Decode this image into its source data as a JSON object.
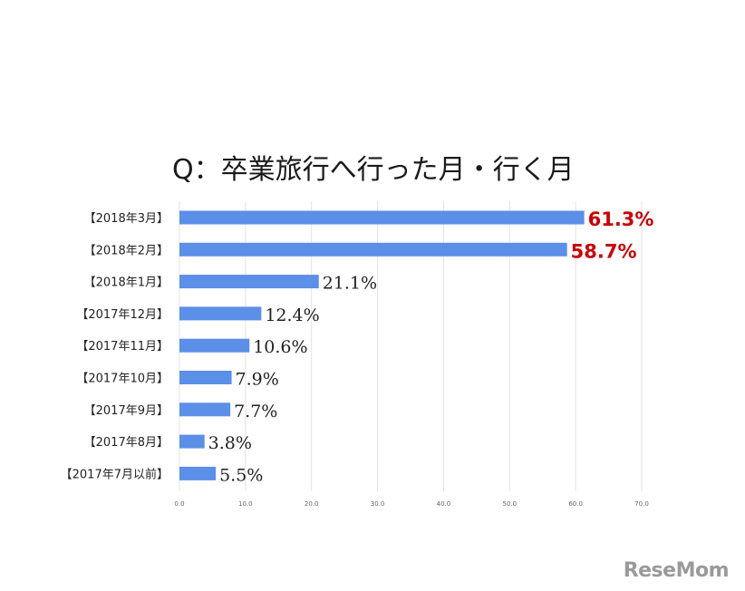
{
  "chart_data": {
    "type": "bar",
    "orientation": "horizontal",
    "title": "Q：卒業旅行へ行った月・行く月",
    "categories": [
      "【2018年3月】",
      "【2018年2月】",
      "【2018年1月】",
      "【2017年12月】",
      "【2017年11月】",
      "【2017年10月】",
      "【2017年9月】",
      "【2017年8月】",
      "【2017年7月以前】"
    ],
    "values": [
      61.3,
      58.7,
      21.1,
      12.4,
      10.6,
      7.9,
      7.7,
      3.8,
      5.5
    ],
    "value_labels": [
      "61.3%",
      "58.7%",
      "21.1%",
      "12.4%",
      "10.6%",
      "7.9%",
      "7.7%",
      "3.8%",
      "5.5%"
    ],
    "highlighted": [
      true,
      true,
      false,
      false,
      false,
      false,
      false,
      false,
      false
    ],
    "xlim": [
      0,
      70
    ],
    "xticks": [
      0,
      10,
      20,
      30,
      40,
      50,
      60,
      70
    ],
    "xtick_labels": [
      "0.0",
      "10.0",
      "20.0",
      "30.0",
      "40.0",
      "50.0",
      "60.0",
      "70.0"
    ],
    "grid": true,
    "legend": "none",
    "colors": {
      "bar": "#5b8fe8",
      "highlight_text": "#cc0000",
      "grid": "#e3e3e3"
    }
  },
  "watermark": {
    "text": "ReseMom"
  }
}
